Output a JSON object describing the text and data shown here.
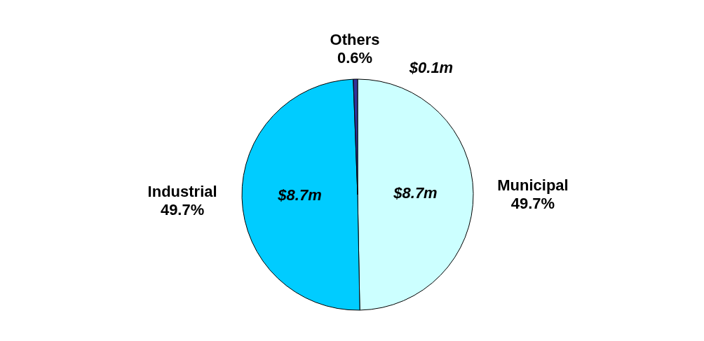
{
  "chart_data": {
    "type": "pie",
    "categories": [
      "Municipal",
      "Industrial",
      "Others"
    ],
    "values": [
      49.7,
      49.7,
      0.6
    ],
    "value_labels": [
      "49.7%",
      "49.7%",
      "0.6%"
    ],
    "colors": [
      "#ccffff",
      "#00ccff",
      "#333399"
    ],
    "annotations": [
      {
        "text": "$8.7m",
        "x": "Municipal"
      },
      {
        "text": "$8.7m",
        "x": "Industrial"
      },
      {
        "text": "$0.1m",
        "x": "Others"
      }
    ]
  }
}
